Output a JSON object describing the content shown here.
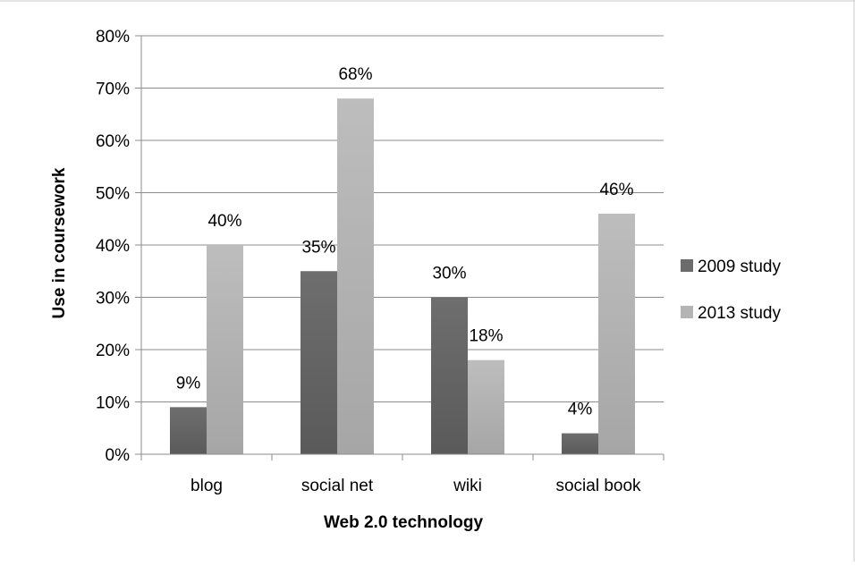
{
  "chart_data": {
    "type": "bar",
    "title": "",
    "xlabel": "Web 2.0 technology",
    "ylabel": "Use in coursework",
    "categories": [
      "blog",
      "social net",
      "wiki",
      "social book"
    ],
    "series": [
      {
        "name": "2009 study",
        "values": [
          9,
          35,
          30,
          4
        ],
        "labels": [
          "9%",
          "35%",
          "30%",
          "4%"
        ],
        "color": "#6b6b6b"
      },
      {
        "name": "2013 study",
        "values": [
          40,
          68,
          18,
          46
        ],
        "labels": [
          "40%",
          "68%",
          "18%",
          "46%"
        ],
        "color": "#b4b4b4"
      }
    ],
    "ylim": [
      0,
      80
    ],
    "yticks": [
      "0%",
      "10%",
      "20%",
      "30%",
      "40%",
      "50%",
      "60%",
      "70%",
      "80%"
    ],
    "grid": true,
    "legend": "right"
  }
}
